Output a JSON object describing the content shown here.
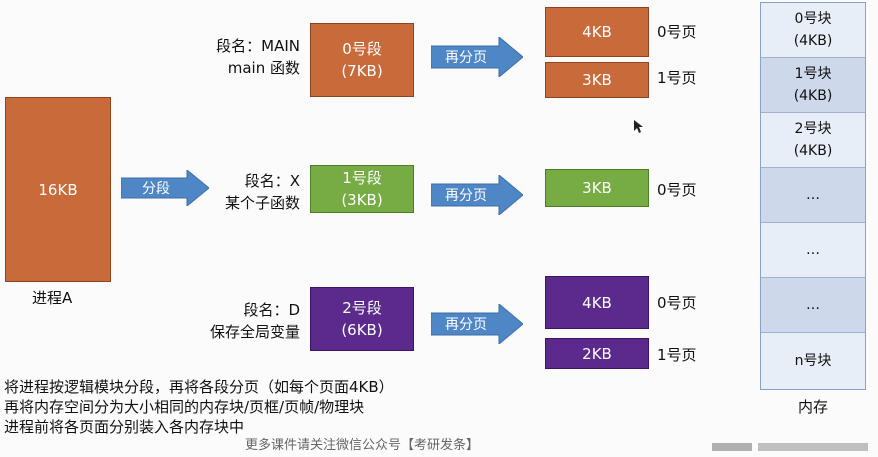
{
  "process": {
    "size": "16KB",
    "label": "进程A"
  },
  "split_arrow_label": "分段",
  "page_arrow_label": "再分页",
  "segments": [
    {
      "name_line1": "段名：MAIN",
      "name_line2": "main 函数",
      "title": "0号段",
      "size": "(7KB)",
      "color": "#c96a3b",
      "pages": [
        {
          "size": "4KB",
          "label": "0号页"
        },
        {
          "size": "3KB",
          "label": "1号页"
        }
      ]
    },
    {
      "name_line1": "段名：X",
      "name_line2": "某个子函数",
      "title": "1号段",
      "size": "(3KB)",
      "color": "#77ab44",
      "pages": [
        {
          "size": "3KB",
          "label": "0号页"
        }
      ]
    },
    {
      "name_line1": "段名：D",
      "name_line2": "保存全局变量",
      "title": "2号段",
      "size": "(6KB)",
      "color": "#5b2a8c",
      "pages": [
        {
          "size": "4KB",
          "label": "0号页"
        },
        {
          "size": "2KB",
          "label": "1号页"
        }
      ]
    }
  ],
  "memory": {
    "label": "内存",
    "blocks": [
      {
        "line1": "0号块",
        "line2": "(4KB)"
      },
      {
        "line1": "1号块",
        "line2": "(4KB)"
      },
      {
        "line1": "2号块",
        "line2": "(4KB)"
      },
      {
        "line1": "…",
        "line2": ""
      },
      {
        "line1": "…",
        "line2": ""
      },
      {
        "line1": "…",
        "line2": ""
      },
      {
        "line1": "n号块",
        "line2": ""
      }
    ]
  },
  "notes": [
    "将进程按逻辑模块分段，再将各段分页（如每个页面4KB）",
    "再将内存空间分为大小相同的内存块/页框/页帧/物理块",
    "进程前将各页面分别装入各内存块中"
  ],
  "watermark": "更多课件请关注微信公众号【考研发条】"
}
